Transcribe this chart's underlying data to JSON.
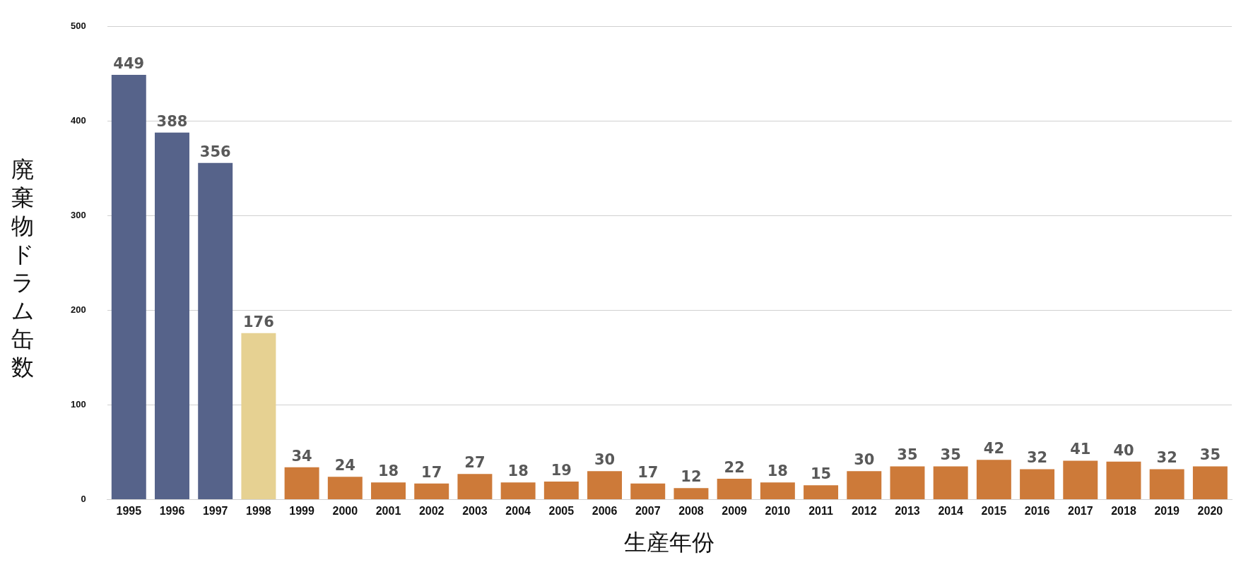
{
  "chart_data": {
    "type": "bar",
    "xlabel": "生産年份",
    "ylabel": "廃棄物ドラム缶数",
    "categories": [
      "1995",
      "1996",
      "1997",
      "1998",
      "1999",
      "2000",
      "2001",
      "2002",
      "2003",
      "2004",
      "2005",
      "2006",
      "2007",
      "2008",
      "2009",
      "2010",
      "2011",
      "2012",
      "2013",
      "2014",
      "2015",
      "2016",
      "2017",
      "2018",
      "2019",
      "2020"
    ],
    "values": [
      449,
      388,
      356,
      176,
      34,
      24,
      18,
      17,
      27,
      18,
      19,
      30,
      17,
      12,
      22,
      18,
      15,
      30,
      35,
      35,
      42,
      32,
      41,
      40,
      32,
      35
    ],
    "colors": [
      "#56638a",
      "#56638a",
      "#56638a",
      "#e6d192",
      "#cd7a39",
      "#cd7a39",
      "#cd7a39",
      "#cd7a39",
      "#cd7a39",
      "#cd7a39",
      "#cd7a39",
      "#cd7a39",
      "#cd7a39",
      "#cd7a39",
      "#cd7a39",
      "#cd7a39",
      "#cd7a39",
      "#cd7a39",
      "#cd7a39",
      "#cd7a39",
      "#cd7a39",
      "#cd7a39",
      "#cd7a39",
      "#cd7a39",
      "#cd7a39",
      "#cd7a39"
    ],
    "ylim": [
      0,
      500
    ],
    "yticks": [
      0,
      100,
      200,
      300,
      400,
      500
    ],
    "grid": "y",
    "data_labels": true,
    "legend": false
  }
}
